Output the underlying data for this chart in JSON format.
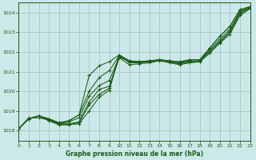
{
  "background_color": "#cde8e8",
  "grid_color": "#aacccc",
  "line_color": "#1a5c1a",
  "marker_color": "#1a5c1a",
  "title": "Graphe pression niveau de la mer (hPa)",
  "xlim": [
    0,
    23
  ],
  "ylim": [
    1017.5,
    1024.5
  ],
  "yticks": [
    1018,
    1019,
    1020,
    1021,
    1022,
    1023,
    1024
  ],
  "xticks": [
    0,
    1,
    2,
    3,
    4,
    5,
    6,
    7,
    8,
    9,
    10,
    11,
    12,
    13,
    14,
    15,
    16,
    17,
    18,
    19,
    20,
    21,
    22,
    23
  ],
  "series": [
    [
      1018.1,
      1018.6,
      1018.75,
      1018.6,
      1018.4,
      1018.5,
      1018.8,
      1020.0,
      1020.7,
      1021.05,
      1021.8,
      1021.55,
      1021.5,
      1021.55,
      1021.6,
      1021.55,
      1021.5,
      1021.6,
      1021.6,
      1022.2,
      1022.8,
      1023.3,
      1024.15,
      1024.3
    ],
    [
      1018.1,
      1018.6,
      1018.75,
      1018.55,
      1018.35,
      1018.35,
      1018.45,
      1019.45,
      1020.1,
      1020.25,
      1021.7,
      1021.35,
      1021.4,
      1021.45,
      1021.55,
      1021.45,
      1021.35,
      1021.45,
      1021.5,
      1021.95,
      1022.45,
      1022.9,
      1023.85,
      1024.2
    ],
    [
      1018.1,
      1018.6,
      1018.75,
      1018.5,
      1018.3,
      1018.3,
      1018.4,
      1019.3,
      1019.85,
      1020.15,
      1021.85,
      1021.45,
      1021.45,
      1021.5,
      1021.6,
      1021.5,
      1021.4,
      1021.5,
      1021.5,
      1022.05,
      1022.55,
      1023.05,
      1024.0,
      1024.25
    ],
    [
      1018.1,
      1018.6,
      1018.75,
      1018.55,
      1018.35,
      1018.45,
      1018.65,
      1019.75,
      1020.3,
      1020.55,
      1021.75,
      1021.5,
      1021.5,
      1021.5,
      1021.6,
      1021.5,
      1021.45,
      1021.55,
      1021.55,
      1022.1,
      1022.65,
      1023.15,
      1024.05,
      1024.3
    ]
  ],
  "series_one_line": [
    1018.1,
    1018.6,
    1018.75,
    1018.6,
    1018.4,
    1018.5,
    1018.8,
    1020.8,
    1021.1,
    1021.4,
    1021.85,
    1021.55,
    1021.5,
    1021.55,
    1021.6,
    1021.55,
    1021.5,
    1021.6,
    1021.6,
    1022.2,
    1022.8,
    1023.3,
    1024.15,
    1024.3
  ]
}
